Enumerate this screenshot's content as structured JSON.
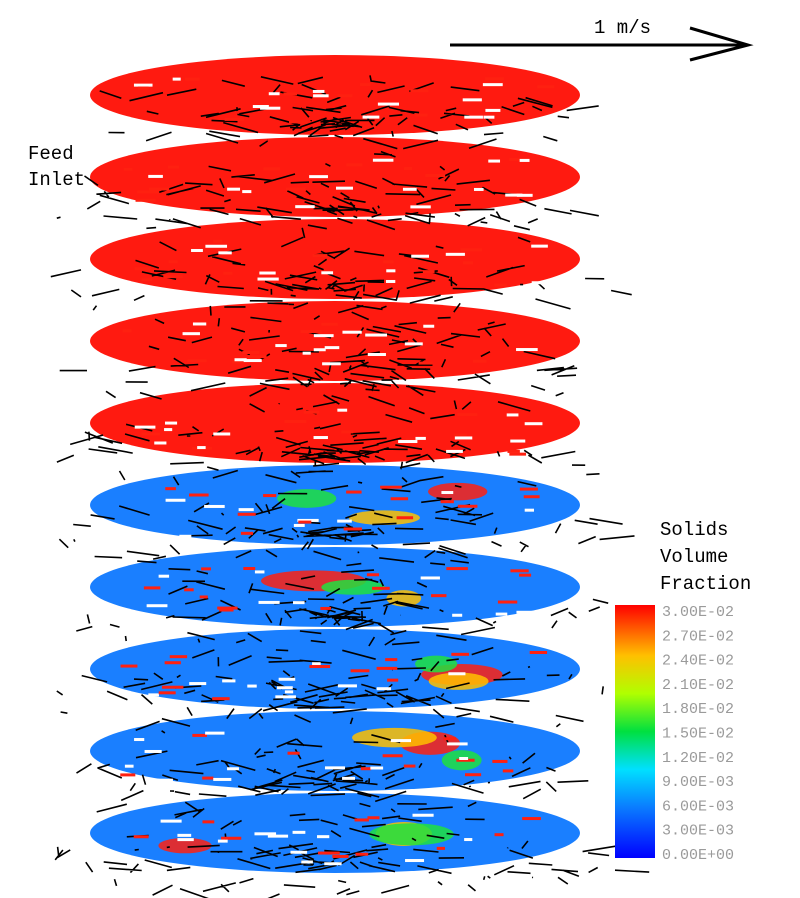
{
  "velocity_scale": {
    "label": "1 m/s"
  },
  "annotation": {
    "lines": [
      "Feed",
      "Inlet"
    ]
  },
  "legend": {
    "title_lines": [
      "Solids",
      "Volume",
      "Fraction"
    ],
    "labels": [
      "3.00E-02",
      "2.70E-02",
      "2.40E-02",
      "2.10E-02",
      "1.80E-02",
      "1.50E-02",
      "1.20E-02",
      "9.00E-03",
      "6.00E-03",
      "3.00E-03",
      "0.00E+00"
    ]
  }
}
